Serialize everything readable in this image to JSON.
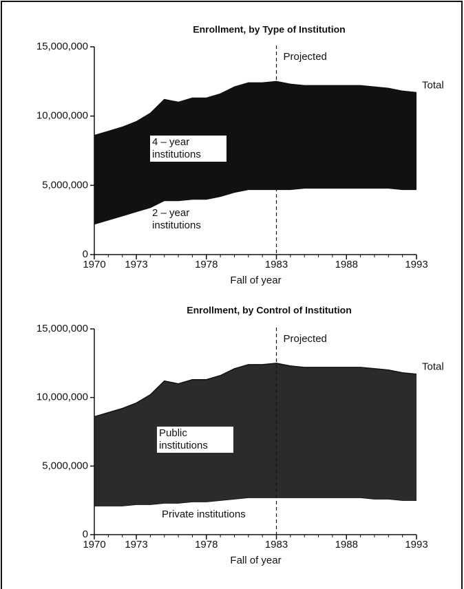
{
  "chart_data": [
    {
      "type": "area",
      "title": "Enrollment, by Type of Institution",
      "xlabel": "Fall of year",
      "x": [
        1970,
        1971,
        1972,
        1973,
        1974,
        1975,
        1976,
        1977,
        1978,
        1979,
        1980,
        1981,
        1982,
        1983,
        1984,
        1985,
        1986,
        1987,
        1988,
        1989,
        1990,
        1991,
        1992,
        1993
      ],
      "series": [
        {
          "name": "2 – year institutions",
          "color": "#ffffff",
          "values": [
            2200000,
            2500000,
            2800000,
            3100000,
            3400000,
            3900000,
            3900000,
            4000000,
            4000000,
            4200000,
            4500000,
            4700000,
            4700000,
            4700000,
            4700000,
            4800000,
            4800000,
            4800000,
            4800000,
            4800000,
            4800000,
            4800000,
            4700000,
            4700000
          ]
        },
        {
          "name": "4 – year institutions",
          "color": "#111111",
          "values": [
            6400000,
            6400000,
            6400000,
            6500000,
            6800000,
            7300000,
            7100000,
            7300000,
            7300000,
            7400000,
            7600000,
            7700000,
            7700000,
            7800000,
            7600000,
            7400000,
            7400000,
            7400000,
            7400000,
            7400000,
            7300000,
            7200000,
            7100000,
            7000000
          ]
        }
      ],
      "total_label": "Total",
      "annotations": [
        {
          "text": "Projected",
          "x": 1983
        }
      ],
      "xlim": [
        1970,
        1993
      ],
      "xticks": [
        1970,
        1973,
        1978,
        1983,
        1988,
        1993
      ],
      "ylim": [
        0,
        15000000
      ],
      "yticks": [
        0,
        {
          "value": 5000000,
          "label": "5,000,000"
        },
        {
          "value": 10000000,
          "label": "10,000,000"
        },
        {
          "value": 15000000,
          "label": "15,000,000"
        }
      ]
    },
    {
      "type": "area",
      "title": "Enrollment, by Control of Institution",
      "xlabel": "Fall of year",
      "x": [
        1970,
        1971,
        1972,
        1973,
        1974,
        1975,
        1976,
        1977,
        1978,
        1979,
        1980,
        1981,
        1982,
        1983,
        1984,
        1985,
        1986,
        1987,
        1988,
        1989,
        1990,
        1991,
        1992,
        1993
      ],
      "series": [
        {
          "name": "Private institutions",
          "color": "#ffffff",
          "values": [
            2100000,
            2100000,
            2100000,
            2200000,
            2200000,
            2300000,
            2300000,
            2400000,
            2400000,
            2500000,
            2600000,
            2700000,
            2700000,
            2700000,
            2700000,
            2700000,
            2700000,
            2700000,
            2700000,
            2700000,
            2600000,
            2600000,
            2500000,
            2500000
          ]
        },
        {
          "name": "Public institutions",
          "color": "#2b2b2b",
          "values": [
            6500000,
            6800000,
            7100000,
            7400000,
            8000000,
            8900000,
            8700000,
            8900000,
            8900000,
            9100000,
            9500000,
            9700000,
            9700000,
            9800000,
            9600000,
            9500000,
            9500000,
            9500000,
            9500000,
            9500000,
            9500000,
            9400000,
            9300000,
            9200000
          ]
        }
      ],
      "total_label": "Total",
      "annotations": [
        {
          "text": "Projected",
          "x": 1983
        }
      ],
      "xlim": [
        1970,
        1993
      ],
      "xticks": [
        1970,
        1973,
        1978,
        1983,
        1988,
        1993
      ],
      "ylim": [
        0,
        15000000
      ],
      "yticks": [
        0,
        {
          "value": 5000000,
          "label": "5,000,000"
        },
        {
          "value": 10000000,
          "label": "10,000,000"
        },
        {
          "value": 15000000,
          "label": "15,000,000"
        }
      ]
    }
  ]
}
